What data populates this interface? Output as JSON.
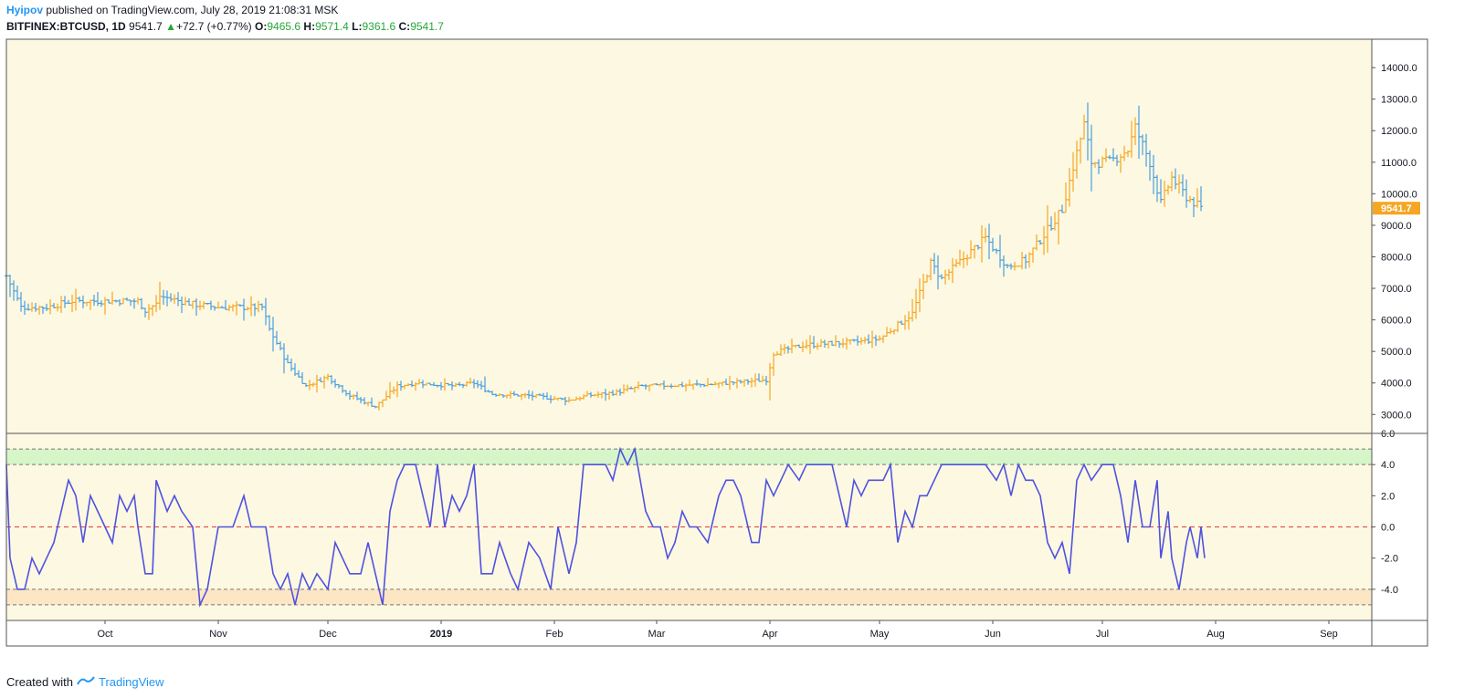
{
  "header": {
    "author": "Hyipov",
    "published": "published on TradingView.com, July 28, 2019 21:08:31 MSK",
    "symbol": "BITFINEX:BTCUSD, 1D",
    "last": "9541.7",
    "change": "+72.7 (+0.77%)",
    "o_label": "O:",
    "o_value": "9465.6",
    "h_label": "H:",
    "h_value": "9571.4",
    "l_label": "L:",
    "l_value": "9361.6",
    "c_label": "C:",
    "c_value": "9541.7"
  },
  "footer": {
    "created_with": "Created with",
    "brand": "TradingView"
  },
  "colors": {
    "background": "#fdf8e1",
    "up_bar": "#f5a623",
    "down_bar": "#4a9fe0",
    "oscillator": "#4f52e0",
    "zero_line": "#e53935",
    "upper_zone": "#d6f5c8",
    "lower_zone": "#fde6c4",
    "price_label": "#f5a623"
  },
  "chart_data": [
    {
      "type": "ohlc",
      "symbol": "BITFINEX:BTCUSD",
      "interval": "1D",
      "ylim": [
        2400,
        14900
      ],
      "y_ticks": [
        "14000.0",
        "13000.0",
        "12000.0",
        "11000.0",
        "10000.0",
        "9000.0",
        "8000.0",
        "7000.0",
        "6000.0",
        "5000.0",
        "4000.0",
        "3000.0"
      ],
      "last_price_label": "9541.7",
      "x_ticks": [
        "Oct",
        "Nov",
        "Dec",
        "2019",
        "Feb",
        "Mar",
        "Apr",
        "May",
        "Jun",
        "Jul",
        "Aug",
        "Sep"
      ],
      "x_start": "2018-09-04",
      "anchors": [
        [
          "2018-09-04",
          7400
        ],
        [
          "2018-09-08",
          6400
        ],
        [
          "2018-09-15",
          6400
        ],
        [
          "2018-09-22",
          6600
        ],
        [
          "2018-10-01",
          6600
        ],
        [
          "2018-10-10",
          6600
        ],
        [
          "2018-10-12",
          6300
        ],
        [
          "2018-10-15",
          6500
        ],
        [
          "2018-10-16",
          6750
        ],
        [
          "2018-10-25",
          6500
        ],
        [
          "2018-11-01",
          6400
        ],
        [
          "2018-11-13",
          6400
        ],
        [
          "2018-11-15",
          5700
        ],
        [
          "2018-11-20",
          4600
        ],
        [
          "2018-11-25",
          3900
        ],
        [
          "2018-12-01",
          4200
        ],
        [
          "2018-12-07",
          3600
        ],
        [
          "2018-12-14",
          3250
        ],
        [
          "2018-12-20",
          3900
        ],
        [
          "2018-12-25",
          4000
        ],
        [
          "2019-01-05",
          3900
        ],
        [
          "2019-01-10",
          4000
        ],
        [
          "2019-01-15",
          3650
        ],
        [
          "2019-01-25",
          3600
        ],
        [
          "2019-02-05",
          3450
        ],
        [
          "2019-02-10",
          3600
        ],
        [
          "2019-02-18",
          3700
        ],
        [
          "2019-02-25",
          3900
        ],
        [
          "2019-03-15",
          3950
        ],
        [
          "2019-03-31",
          4100
        ],
        [
          "2019-04-02",
          4950
        ],
        [
          "2019-04-10",
          5200
        ],
        [
          "2019-04-25",
          5300
        ],
        [
          "2019-05-01",
          5400
        ],
        [
          "2019-05-10",
          6200
        ],
        [
          "2019-05-15",
          7800
        ],
        [
          "2019-05-18",
          7300
        ],
        [
          "2019-05-30",
          8600
        ],
        [
          "2019-06-05",
          7700
        ],
        [
          "2019-06-10",
          7900
        ],
        [
          "2019-06-15",
          8700
        ],
        [
          "2019-06-20",
          9500
        ],
        [
          "2019-06-26",
          12200
        ],
        [
          "2019-06-28",
          11000
        ],
        [
          "2019-07-03",
          11000
        ],
        [
          "2019-07-08",
          11400
        ],
        [
          "2019-07-10",
          12100
        ],
        [
          "2019-07-14",
          11000
        ],
        [
          "2019-07-17",
          9700
        ],
        [
          "2019-07-20",
          10500
        ],
        [
          "2019-07-24",
          9900
        ],
        [
          "2019-07-28",
          9541.7
        ]
      ]
    },
    {
      "type": "line",
      "name": "oscillator",
      "ylim": [
        -6.0,
        6.0
      ],
      "y_ticks": [
        "6.0",
        "4.0",
        "2.0",
        "0.0",
        "-2.0",
        "-4.0"
      ],
      "reference_lines": [
        5,
        4,
        0,
        -4,
        -5
      ],
      "zones": [
        [
          4,
          5
        ],
        [
          -5,
          -4
        ]
      ],
      "anchors": [
        [
          "2018-09-04",
          4
        ],
        [
          "2018-09-05",
          -2
        ],
        [
          "2018-09-07",
          -4
        ],
        [
          "2018-09-09",
          -4
        ],
        [
          "2018-09-11",
          -2
        ],
        [
          "2018-09-13",
          -3
        ],
        [
          "2018-09-15",
          -2
        ],
        [
          "2018-09-17",
          -1
        ],
        [
          "2018-09-19",
          1
        ],
        [
          "2018-09-21",
          3
        ],
        [
          "2018-09-23",
          2
        ],
        [
          "2018-09-25",
          -1
        ],
        [
          "2018-09-27",
          2
        ],
        [
          "2018-09-29",
          1
        ],
        [
          "2018-10-01",
          0
        ],
        [
          "2018-10-03",
          -1
        ],
        [
          "2018-10-05",
          2
        ],
        [
          "2018-10-07",
          1
        ],
        [
          "2018-10-09",
          2
        ],
        [
          "2018-10-10",
          0
        ],
        [
          "2018-10-12",
          -3
        ],
        [
          "2018-10-14",
          -3
        ],
        [
          "2018-10-15",
          3
        ],
        [
          "2018-10-18",
          1
        ],
        [
          "2018-10-20",
          2
        ],
        [
          "2018-10-22",
          1
        ],
        [
          "2018-10-25",
          0
        ],
        [
          "2018-10-27",
          -5
        ],
        [
          "2018-10-29",
          -4
        ],
        [
          "2018-11-01",
          0
        ],
        [
          "2018-11-05",
          0
        ],
        [
          "2018-11-08",
          2
        ],
        [
          "2018-11-10",
          0
        ],
        [
          "2018-11-14",
          0
        ],
        [
          "2018-11-16",
          -3
        ],
        [
          "2018-11-18",
          -4
        ],
        [
          "2018-11-20",
          -3
        ],
        [
          "2018-11-22",
          -5
        ],
        [
          "2018-11-24",
          -3
        ],
        [
          "2018-11-26",
          -4
        ],
        [
          "2018-11-28",
          -3
        ],
        [
          "2018-12-01",
          -4
        ],
        [
          "2018-12-03",
          -1
        ],
        [
          "2018-12-05",
          -2
        ],
        [
          "2018-12-07",
          -3
        ],
        [
          "2018-12-10",
          -3
        ],
        [
          "2018-12-12",
          -1
        ],
        [
          "2018-12-14",
          -3
        ],
        [
          "2018-12-16",
          -5
        ],
        [
          "2018-12-18",
          1
        ],
        [
          "2018-12-20",
          3
        ],
        [
          "2018-12-22",
          4
        ],
        [
          "2018-12-25",
          4
        ],
        [
          "2018-12-27",
          2
        ],
        [
          "2018-12-29",
          0
        ],
        [
          "2018-12-31",
          4
        ],
        [
          "2019-01-02",
          0
        ],
        [
          "2019-01-04",
          2
        ],
        [
          "2019-01-06",
          1
        ],
        [
          "2019-01-08",
          2
        ],
        [
          "2019-01-10",
          4
        ],
        [
          "2019-01-12",
          -3
        ],
        [
          "2019-01-15",
          -3
        ],
        [
          "2019-01-17",
          -1
        ],
        [
          "2019-01-20",
          -3
        ],
        [
          "2019-01-22",
          -4
        ],
        [
          "2019-01-25",
          -1
        ],
        [
          "2019-01-28",
          -2
        ],
        [
          "2019-01-31",
          -4
        ],
        [
          "2019-02-02",
          0
        ],
        [
          "2019-02-05",
          -3
        ],
        [
          "2019-02-07",
          -1
        ],
        [
          "2019-02-09",
          4
        ],
        [
          "2019-02-12",
          4
        ],
        [
          "2019-02-15",
          4
        ],
        [
          "2019-02-17",
          3
        ],
        [
          "2019-02-19",
          5
        ],
        [
          "2019-02-21",
          4
        ],
        [
          "2019-02-23",
          5
        ],
        [
          "2019-02-26",
          1
        ],
        [
          "2019-02-28",
          0
        ],
        [
          "2019-03-02",
          0
        ],
        [
          "2019-03-04",
          -2
        ],
        [
          "2019-03-06",
          -1
        ],
        [
          "2019-03-08",
          1
        ],
        [
          "2019-03-10",
          0
        ],
        [
          "2019-03-12",
          0
        ],
        [
          "2019-03-15",
          -1
        ],
        [
          "2019-03-18",
          2
        ],
        [
          "2019-03-20",
          3
        ],
        [
          "2019-03-22",
          3
        ],
        [
          "2019-03-24",
          2
        ],
        [
          "2019-03-27",
          -1
        ],
        [
          "2019-03-29",
          -1
        ],
        [
          "2019-03-31",
          3
        ],
        [
          "2019-04-02",
          2
        ],
        [
          "2019-04-04",
          3
        ],
        [
          "2019-04-06",
          4
        ],
        [
          "2019-04-09",
          3
        ],
        [
          "2019-04-11",
          4
        ],
        [
          "2019-04-14",
          4
        ],
        [
          "2019-04-18",
          4
        ],
        [
          "2019-04-20",
          2
        ],
        [
          "2019-04-22",
          0
        ],
        [
          "2019-04-24",
          3
        ],
        [
          "2019-04-26",
          2
        ],
        [
          "2019-04-28",
          3
        ],
        [
          "2019-05-02",
          3
        ],
        [
          "2019-05-04",
          4
        ],
        [
          "2019-05-06",
          -1
        ],
        [
          "2019-05-08",
          1
        ],
        [
          "2019-05-10",
          0
        ],
        [
          "2019-05-12",
          2
        ],
        [
          "2019-05-14",
          2
        ],
        [
          "2019-05-16",
          3
        ],
        [
          "2019-05-18",
          4
        ],
        [
          "2019-05-25",
          4
        ],
        [
          "2019-05-30",
          4
        ],
        [
          "2019-06-02",
          3
        ],
        [
          "2019-06-04",
          4
        ],
        [
          "2019-06-06",
          2
        ],
        [
          "2019-06-08",
          4
        ],
        [
          "2019-06-10",
          3
        ],
        [
          "2019-06-12",
          3
        ],
        [
          "2019-06-14",
          2
        ],
        [
          "2019-06-16",
          -1
        ],
        [
          "2019-06-18",
          -2
        ],
        [
          "2019-06-20",
          -1
        ],
        [
          "2019-06-22",
          -3
        ],
        [
          "2019-06-24",
          3
        ],
        [
          "2019-06-26",
          4
        ],
        [
          "2019-06-28",
          3
        ],
        [
          "2019-07-01",
          4
        ],
        [
          "2019-07-04",
          4
        ],
        [
          "2019-07-06",
          2
        ],
        [
          "2019-07-08",
          -1
        ],
        [
          "2019-07-10",
          3
        ],
        [
          "2019-07-12",
          0
        ],
        [
          "2019-07-14",
          0
        ],
        [
          "2019-07-16",
          3
        ],
        [
          "2019-07-17",
          -2
        ],
        [
          "2019-07-19",
          1
        ],
        [
          "2019-07-20",
          -2
        ],
        [
          "2019-07-22",
          -4
        ],
        [
          "2019-07-24",
          -1
        ],
        [
          "2019-07-25",
          0
        ],
        [
          "2019-07-27",
          -2
        ],
        [
          "2019-07-28",
          0
        ],
        [
          "2019-07-29",
          -2
        ]
      ]
    }
  ]
}
